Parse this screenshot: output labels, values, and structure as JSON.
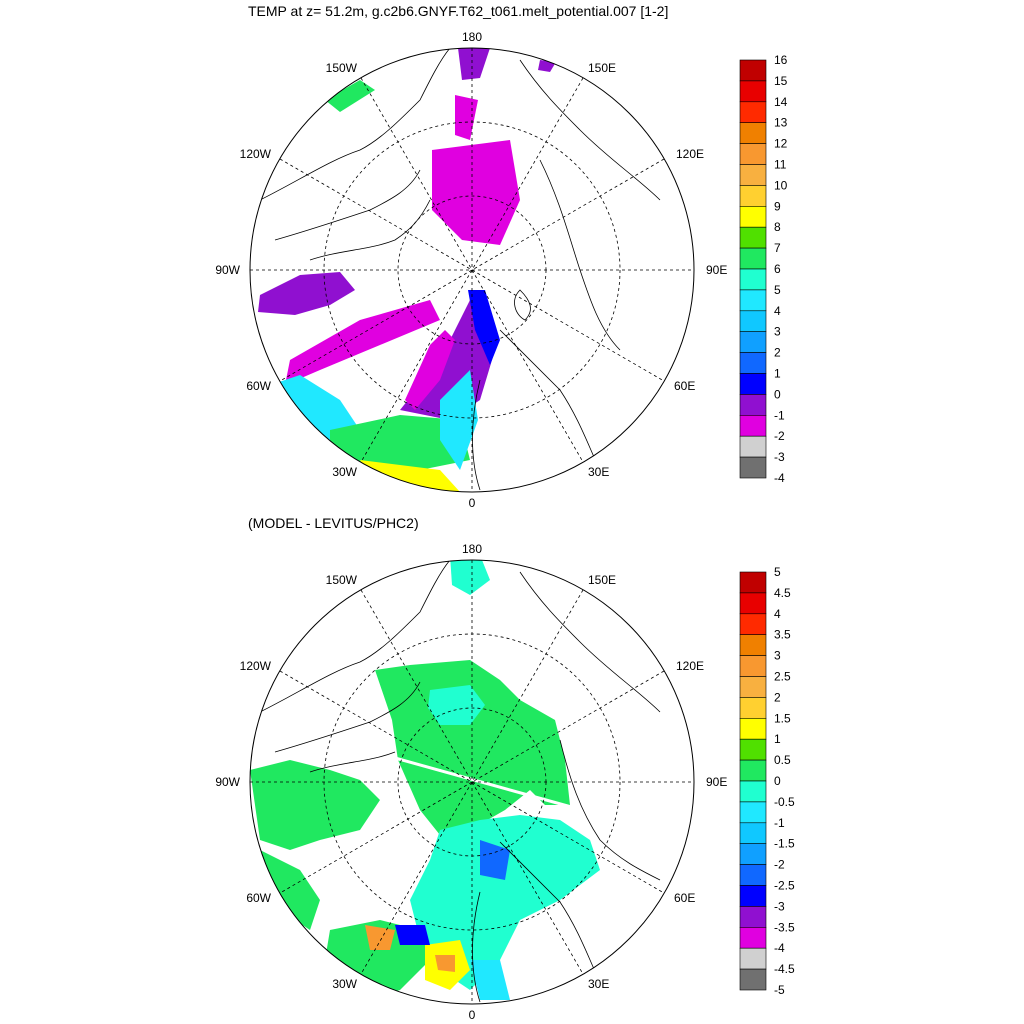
{
  "titles": {
    "top": "TEMP at z=  51.2m, g.c2b6.GNYF.T62_t061.melt_potential.007 [1-2]",
    "bottom": "(MODEL - LEVITUS/PHC2)"
  },
  "longitude_labels": [
    "180",
    "150E",
    "120E",
    "90E",
    "60E",
    "30E",
    "0",
    "30W",
    "60W",
    "90W",
    "120W",
    "150W"
  ],
  "colorbars": {
    "top": {
      "labels": [
        "16",
        "15",
        "14",
        "13",
        "12",
        "11",
        "10",
        "9",
        "8",
        "7",
        "6",
        "5",
        "4",
        "3",
        "2",
        "1",
        "0",
        "-1",
        "-2",
        "-3",
        "-4"
      ],
      "colors": [
        "#c00000",
        "#e80000",
        "#ff2a00",
        "#f08000",
        "#f89830",
        "#f8b040",
        "#ffd030",
        "#ffff00",
        "#50e000",
        "#20e860",
        "#20ffd0",
        "#20e8ff",
        "#10c8ff",
        "#10a0ff",
        "#1068ff",
        "#0000ff",
        "#9010d0",
        "#e000e0",
        "#d0d0d0",
        "#707070"
      ]
    },
    "bottom": {
      "labels": [
        "5",
        "4.5",
        "4",
        "3.5",
        "3",
        "2.5",
        "2",
        "1.5",
        "1",
        "0.5",
        "0",
        "-0.5",
        "-1",
        "-1.5",
        "-2",
        "-2.5",
        "-3",
        "-3.5",
        "-4",
        "-4.5",
        "-5"
      ],
      "colors": [
        "#c00000",
        "#e80000",
        "#ff2a00",
        "#f08000",
        "#f89830",
        "#f8b040",
        "#ffd030",
        "#ffff00",
        "#50e000",
        "#20e860",
        "#20ffd0",
        "#20e8ff",
        "#10c8ff",
        "#10a0ff",
        "#1068ff",
        "#0000ff",
        "#9010d0",
        "#e000e0",
        "#d0d0d0",
        "#707070"
      ]
    }
  },
  "field_colors": {
    "green": "#20e860",
    "cyan": "#20ffd0",
    "lightcyan": "#20e8ff",
    "blue": "#1068ff",
    "darkblue": "#0000ff",
    "purple": "#9010d0",
    "magenta": "#e000e0",
    "yellow": "#ffff00",
    "orange": "#f89830",
    "brightgreen": "#50e000"
  }
}
